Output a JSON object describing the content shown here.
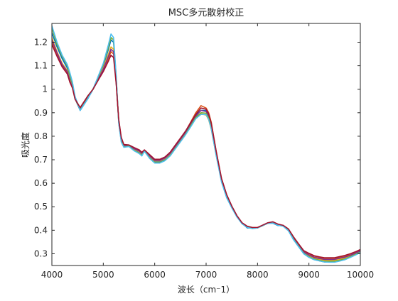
{
  "chart_data": {
    "type": "line",
    "title": "MSC多元散射校正",
    "xlabel": "波长（cm⁻1）",
    "ylabel": "吸光度",
    "xlim": [
      4000,
      10000
    ],
    "ylim": [
      0.25,
      1.28
    ],
    "xticks": [
      4000,
      5000,
      6000,
      7000,
      8000,
      9000,
      10000
    ],
    "xtick_labels": [
      "4000",
      "5000",
      "6000",
      "7000",
      "8000",
      "9000",
      "10000"
    ],
    "yticks": [
      0.3,
      0.4,
      0.5,
      0.6,
      0.7,
      0.8,
      0.9,
      1.0,
      1.1,
      1.2
    ],
    "ytick_labels": [
      "0.3",
      "0.4",
      "0.5",
      "0.6",
      "0.7",
      "0.8",
      "0.9",
      "1",
      "1.1",
      "1.2"
    ],
    "grid": false,
    "legend": "none",
    "series": [
      {
        "color": "#0072BD",
        "x": [
          4000,
          4100,
          4200,
          4300,
          4350,
          4400,
          4450,
          4550,
          4700,
          4800,
          4900,
          5000,
          5100,
          5150,
          5200,
          5250,
          5300,
          5350,
          5400,
          5500,
          5600,
          5700,
          5750,
          5800,
          5900,
          6000,
          6100,
          6200,
          6300,
          6400,
          6500,
          6600,
          6700,
          6800,
          6900,
          7000,
          7050,
          7100,
          7200,
          7300,
          7400,
          7500,
          7600,
          7700,
          7800,
          7900,
          8000,
          8100,
          8200,
          8300,
          8400,
          8500,
          8600,
          8700,
          8800,
          8900,
          9000,
          9100,
          9200,
          9300,
          9400,
          9500,
          9600,
          9700,
          9800,
          9900,
          10000
        ],
        "y": [
          1.24,
          1.18,
          1.13,
          1.09,
          1.05,
          1.02,
          0.96,
          0.91,
          0.96,
          1.0,
          1.05,
          1.1,
          1.17,
          1.21,
          1.2,
          1.05,
          0.86,
          0.78,
          0.76,
          0.76,
          0.74,
          0.73,
          0.72,
          0.74,
          0.71,
          0.69,
          0.69,
          0.7,
          0.72,
          0.75,
          0.78,
          0.81,
          0.85,
          0.89,
          0.91,
          0.91,
          0.88,
          0.84,
          0.72,
          0.61,
          0.54,
          0.5,
          0.46,
          0.43,
          0.41,
          0.41,
          0.41,
          0.42,
          0.43,
          0.43,
          0.42,
          0.42,
          0.4,
          0.36,
          0.33,
          0.3,
          0.285,
          0.275,
          0.27,
          0.265,
          0.265,
          0.265,
          0.27,
          0.275,
          0.285,
          0.295,
          0.305
        ]
      },
      {
        "color": "#D95319",
        "x": [
          4000,
          4100,
          4200,
          4300,
          4350,
          4400,
          4450,
          4550,
          4700,
          4800,
          4900,
          5000,
          5100,
          5150,
          5200,
          5250,
          5300,
          5350,
          5400,
          5500,
          5600,
          5700,
          5750,
          5800,
          5900,
          6000,
          6100,
          6200,
          6300,
          6400,
          6500,
          6600,
          6700,
          6800,
          6900,
          7000,
          7050,
          7100,
          7200,
          7300,
          7400,
          7500,
          7600,
          7700,
          7800,
          7900,
          8000,
          8100,
          8200,
          8300,
          8400,
          8500,
          8600,
          8700,
          8800,
          8900,
          9000,
          9100,
          9200,
          9300,
          9400,
          9500,
          9600,
          9700,
          9800,
          9900,
          10000
        ],
        "y": [
          1.2,
          1.15,
          1.1,
          1.07,
          1.03,
          1.01,
          0.96,
          0.92,
          0.97,
          1.0,
          1.04,
          1.08,
          1.13,
          1.16,
          1.15,
          1.03,
          0.87,
          0.79,
          0.76,
          0.76,
          0.75,
          0.74,
          0.73,
          0.74,
          0.72,
          0.7,
          0.7,
          0.71,
          0.73,
          0.76,
          0.79,
          0.82,
          0.86,
          0.9,
          0.93,
          0.92,
          0.9,
          0.86,
          0.73,
          0.62,
          0.55,
          0.5,
          0.46,
          0.43,
          0.415,
          0.41,
          0.41,
          0.42,
          0.43,
          0.435,
          0.425,
          0.42,
          0.405,
          0.37,
          0.34,
          0.31,
          0.3,
          0.29,
          0.285,
          0.28,
          0.28,
          0.28,
          0.285,
          0.29,
          0.295,
          0.305,
          0.315
        ]
      },
      {
        "color": "#EDB120",
        "x": [
          4000,
          4100,
          4200,
          4300,
          4350,
          4400,
          4450,
          4550,
          4700,
          4800,
          4900,
          5000,
          5100,
          5150,
          5200,
          5250,
          5300,
          5350,
          5400,
          5500,
          5600,
          5700,
          5750,
          5800,
          5900,
          6000,
          6100,
          6200,
          6300,
          6400,
          6500,
          6600,
          6700,
          6800,
          6900,
          7000,
          7050,
          7100,
          7200,
          7300,
          7400,
          7500,
          7600,
          7700,
          7800,
          7900,
          8000,
          8100,
          8200,
          8300,
          8400,
          8500,
          8600,
          8700,
          8800,
          8900,
          9000,
          9100,
          9200,
          9300,
          9400,
          9500,
          9600,
          9700,
          9800,
          9900,
          10000
        ],
        "y": [
          1.22,
          1.16,
          1.11,
          1.08,
          1.04,
          1.01,
          0.96,
          0.915,
          0.965,
          1.0,
          1.045,
          1.09,
          1.15,
          1.18,
          1.17,
          1.04,
          0.865,
          0.785,
          0.76,
          0.76,
          0.745,
          0.735,
          0.725,
          0.74,
          0.715,
          0.695,
          0.695,
          0.705,
          0.725,
          0.755,
          0.785,
          0.815,
          0.845,
          0.875,
          0.895,
          0.89,
          0.87,
          0.83,
          0.715,
          0.61,
          0.545,
          0.5,
          0.46,
          0.43,
          0.415,
          0.41,
          0.41,
          0.42,
          0.43,
          0.432,
          0.422,
          0.418,
          0.402,
          0.365,
          0.335,
          0.305,
          0.292,
          0.282,
          0.277,
          0.272,
          0.272,
          0.272,
          0.277,
          0.282,
          0.29,
          0.3,
          0.31
        ]
      },
      {
        "color": "#7E2F8E",
        "x": [
          4000,
          4100,
          4200,
          4300,
          4350,
          4400,
          4450,
          4550,
          4700,
          4800,
          4900,
          5000,
          5100,
          5150,
          5200,
          5250,
          5300,
          5350,
          5400,
          5500,
          5600,
          5700,
          5750,
          5800,
          5900,
          6000,
          6100,
          6200,
          6300,
          6400,
          6500,
          6600,
          6700,
          6800,
          6900,
          7000,
          7050,
          7100,
          7200,
          7300,
          7400,
          7500,
          7600,
          7700,
          7800,
          7900,
          8000,
          8100,
          8200,
          8300,
          8400,
          8500,
          8600,
          8700,
          8800,
          8900,
          9000,
          9100,
          9200,
          9300,
          9400,
          9500,
          9600,
          9700,
          9800,
          9900,
          10000
        ],
        "y": [
          1.21,
          1.155,
          1.105,
          1.075,
          1.035,
          1.01,
          0.96,
          0.917,
          0.967,
          1.0,
          1.042,
          1.085,
          1.14,
          1.17,
          1.16,
          1.035,
          0.866,
          0.787,
          0.76,
          0.76,
          0.747,
          0.737,
          0.727,
          0.74,
          0.717,
          0.697,
          0.697,
          0.707,
          0.727,
          0.757,
          0.787,
          0.817,
          0.853,
          0.885,
          0.91,
          0.905,
          0.885,
          0.845,
          0.725,
          0.615,
          0.548,
          0.5,
          0.46,
          0.43,
          0.415,
          0.41,
          0.41,
          0.42,
          0.43,
          0.433,
          0.423,
          0.419,
          0.403,
          0.367,
          0.337,
          0.307,
          0.295,
          0.285,
          0.28,
          0.276,
          0.276,
          0.276,
          0.281,
          0.286,
          0.293,
          0.302,
          0.312
        ]
      },
      {
        "color": "#77AC30",
        "x": [
          4000,
          4100,
          4200,
          4300,
          4350,
          4400,
          4450,
          4550,
          4700,
          4800,
          4900,
          5000,
          5100,
          5150,
          5200,
          5250,
          5300,
          5350,
          5400,
          5500,
          5600,
          5700,
          5750,
          5800,
          5900,
          6000,
          6100,
          6200,
          6300,
          6400,
          6500,
          6600,
          6700,
          6800,
          6900,
          7000,
          7050,
          7100,
          7200,
          7300,
          7400,
          7500,
          7600,
          7700,
          7800,
          7900,
          8000,
          8100,
          8200,
          8300,
          8400,
          8500,
          8600,
          8700,
          8800,
          8900,
          9000,
          9100,
          9200,
          9300,
          9400,
          9500,
          9600,
          9700,
          9800,
          9900,
          10000
        ],
        "y": [
          1.26,
          1.19,
          1.14,
          1.1,
          1.06,
          1.025,
          0.965,
          0.912,
          0.962,
          1.0,
          1.052,
          1.105,
          1.18,
          1.22,
          1.21,
          1.055,
          0.858,
          0.778,
          0.755,
          0.758,
          0.74,
          0.728,
          0.718,
          0.738,
          0.708,
          0.688,
          0.688,
          0.698,
          0.718,
          0.748,
          0.778,
          0.808,
          0.845,
          0.88,
          0.9,
          0.898,
          0.878,
          0.838,
          0.718,
          0.608,
          0.54,
          0.497,
          0.458,
          0.428,
          0.413,
          0.408,
          0.41,
          0.42,
          0.43,
          0.432,
          0.422,
          0.418,
          0.4,
          0.362,
          0.332,
          0.302,
          0.288,
          0.278,
          0.273,
          0.268,
          0.268,
          0.268,
          0.273,
          0.278,
          0.287,
          0.297,
          0.307
        ]
      },
      {
        "color": "#4DBEEE",
        "x": [
          4000,
          4100,
          4200,
          4300,
          4350,
          4400,
          4450,
          4550,
          4700,
          4800,
          4900,
          5000,
          5100,
          5150,
          5200,
          5250,
          5300,
          5350,
          5400,
          5500,
          5600,
          5700,
          5750,
          5800,
          5900,
          6000,
          6100,
          6200,
          6300,
          6400,
          6500,
          6600,
          6700,
          6800,
          6900,
          7000,
          7050,
          7100,
          7200,
          7300,
          7400,
          7500,
          7600,
          7700,
          7800,
          7900,
          8000,
          8100,
          8200,
          8300,
          8400,
          8500,
          8600,
          8700,
          8800,
          8900,
          9000,
          9100,
          9200,
          9300,
          9400,
          9500,
          9600,
          9700,
          9800,
          9900,
          10000
        ],
        "y": [
          1.27,
          1.2,
          1.145,
          1.105,
          1.07,
          1.03,
          0.97,
          0.91,
          0.96,
          1.0,
          1.055,
          1.11,
          1.19,
          1.235,
          1.22,
          1.06,
          0.855,
          0.775,
          0.753,
          0.756,
          0.738,
          0.726,
          0.716,
          0.736,
          0.706,
          0.686,
          0.686,
          0.696,
          0.716,
          0.746,
          0.776,
          0.806,
          0.84,
          0.875,
          0.893,
          0.892,
          0.872,
          0.832,
          0.713,
          0.605,
          0.538,
          0.495,
          0.456,
          0.427,
          0.412,
          0.407,
          0.41,
          0.42,
          0.43,
          0.431,
          0.421,
          0.417,
          0.398,
          0.36,
          0.33,
          0.3,
          0.285,
          0.275,
          0.27,
          0.265,
          0.264,
          0.264,
          0.269,
          0.275,
          0.284,
          0.294,
          0.305
        ]
      },
      {
        "color": "#A2142F",
        "x": [
          4000,
          4100,
          4200,
          4300,
          4350,
          4400,
          4450,
          4550,
          4700,
          4800,
          4900,
          5000,
          5100,
          5150,
          5200,
          5250,
          5300,
          5350,
          5400,
          5500,
          5600,
          5700,
          5750,
          5800,
          5900,
          6000,
          6100,
          6200,
          6300,
          6400,
          6500,
          6600,
          6700,
          6800,
          6900,
          7000,
          7050,
          7100,
          7200,
          7300,
          7400,
          7500,
          7600,
          7700,
          7800,
          7900,
          8000,
          8100,
          8200,
          8300,
          8400,
          8500,
          8600,
          8700,
          8800,
          8900,
          9000,
          9100,
          9200,
          9300,
          9400,
          9500,
          9600,
          9700,
          9800,
          9900,
          10000
        ],
        "y": [
          1.19,
          1.14,
          1.095,
          1.065,
          1.03,
          1.005,
          0.958,
          0.922,
          0.972,
          1.0,
          1.038,
          1.075,
          1.12,
          1.145,
          1.135,
          1.025,
          0.872,
          0.795,
          0.765,
          0.763,
          0.752,
          0.742,
          0.732,
          0.742,
          0.722,
          0.702,
          0.702,
          0.712,
          0.732,
          0.762,
          0.792,
          0.822,
          0.858,
          0.893,
          0.92,
          0.915,
          0.895,
          0.855,
          0.732,
          0.62,
          0.552,
          0.503,
          0.462,
          0.432,
          0.417,
          0.412,
          0.412,
          0.422,
          0.432,
          0.436,
          0.426,
          0.421,
          0.406,
          0.372,
          0.342,
          0.313,
          0.302,
          0.292,
          0.287,
          0.283,
          0.283,
          0.283,
          0.288,
          0.293,
          0.3,
          0.308,
          0.318
        ]
      }
    ]
  }
}
